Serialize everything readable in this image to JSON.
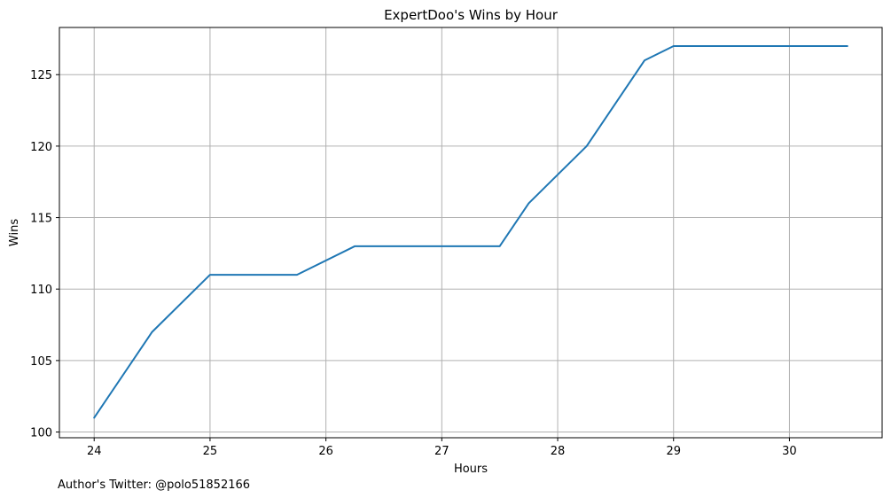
{
  "chart_data": {
    "type": "line",
    "title": "ExpertDoo's Wins by Hour",
    "xlabel": "Hours",
    "ylabel": "Wins",
    "xlim": [
      23.7,
      30.8
    ],
    "ylim": [
      99.6,
      128.3
    ],
    "xticks": [
      24,
      25,
      26,
      27,
      28,
      29,
      30
    ],
    "yticks": [
      100,
      105,
      110,
      115,
      120,
      125
    ],
    "grid": true,
    "series": [
      {
        "name": "Wins",
        "color": "#1f77b4",
        "x": [
          24,
          24.5,
          25,
          25.75,
          26.25,
          27.5,
          27.75,
          28.25,
          28.75,
          29,
          30.5
        ],
        "y": [
          101,
          107,
          111,
          111,
          113,
          113,
          116,
          120,
          126,
          127,
          127
        ]
      }
    ]
  },
  "footer": {
    "credit": "Author's Twitter: @polo51852166"
  }
}
